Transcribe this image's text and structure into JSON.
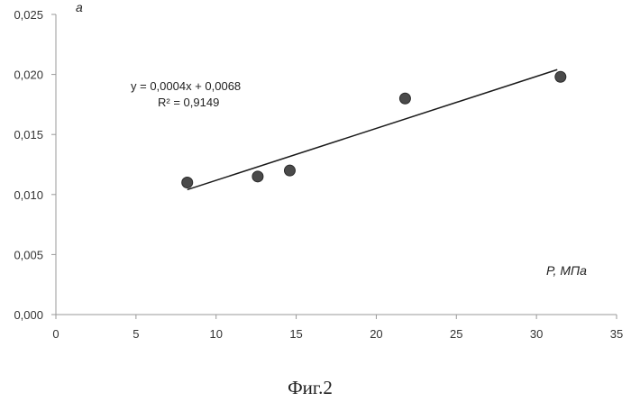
{
  "chart_data": {
    "type": "scatter",
    "title": "",
    "xlabel": "P, МПа",
    "ylabel": "a",
    "xlim": [
      0,
      35
    ],
    "ylim": [
      0,
      0.025
    ],
    "x_ticks": [
      "0",
      "5",
      "10",
      "15",
      "20",
      "25",
      "30",
      "35"
    ],
    "y_ticks": [
      "0,000",
      "0,005",
      "0,010",
      "0,015",
      "0,020",
      "0,025"
    ],
    "grid": false,
    "legend": "none",
    "points": [
      {
        "x": 8.2,
        "y": 0.011
      },
      {
        "x": 12.6,
        "y": 0.0115
      },
      {
        "x": 14.6,
        "y": 0.012
      },
      {
        "x": 21.8,
        "y": 0.018
      },
      {
        "x": 31.5,
        "y": 0.0198
      }
    ],
    "trendline": {
      "x_start": 8.2,
      "y_start": 0.0104,
      "x_end": 31.3,
      "y_end": 0.0204,
      "equation": "y = 0,0004x + 0,0068",
      "r_squared": "R² = 0,9149"
    },
    "marker_color": "#4a4a4a",
    "line_color": "#1a1a1a"
  },
  "figure_caption": "Фиг.2"
}
